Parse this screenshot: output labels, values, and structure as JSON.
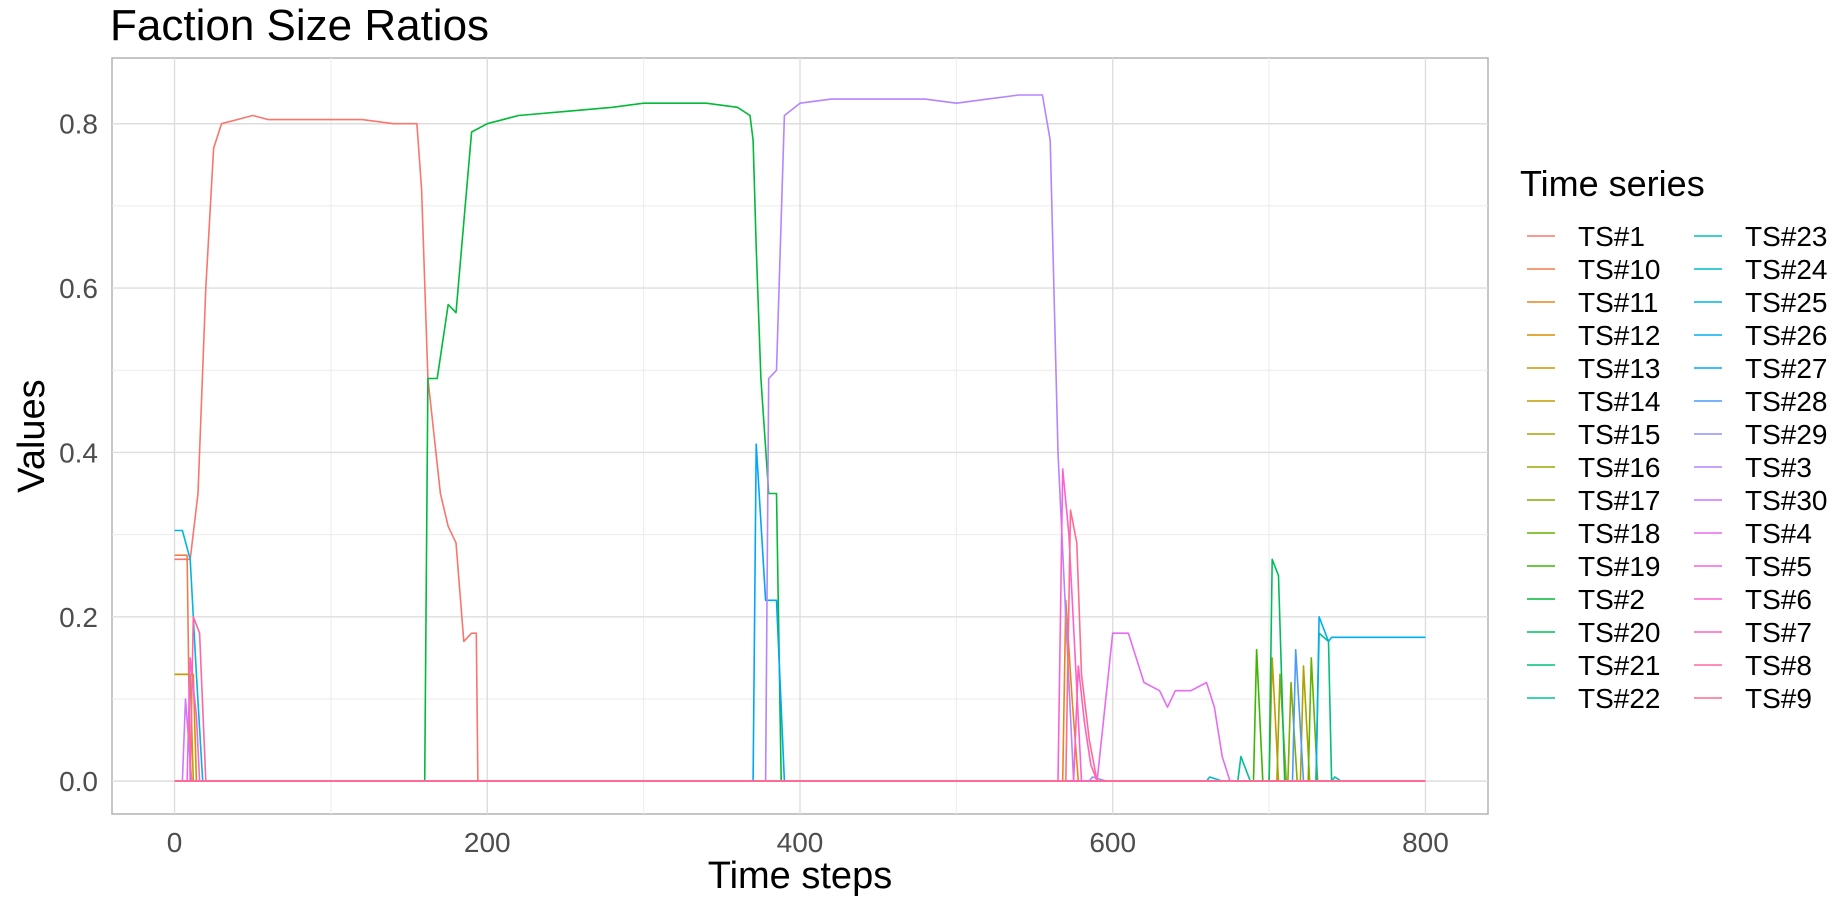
{
  "chart_data": {
    "type": "line",
    "title": "Faction Size Ratios",
    "xlabel": "Time steps",
    "ylabel": "Values",
    "xlim": [
      -40,
      840
    ],
    "ylim": [
      -0.04,
      0.88
    ],
    "x_ticks": [
      0,
      200,
      400,
      600,
      800
    ],
    "y_ticks": [
      0.0,
      0.2,
      0.4,
      0.6,
      0.8
    ],
    "x_tick_labels": [
      "0",
      "200",
      "400",
      "600",
      "800"
    ],
    "y_tick_labels": [
      "0.0",
      "0.2",
      "0.4",
      "0.6",
      "0.8"
    ],
    "grid": true,
    "legend": {
      "title": "Time series",
      "position": "right",
      "columns": 2
    },
    "series": [
      {
        "name": "TS#1",
        "color": "#F8766D",
        "points": [
          [
            0,
            0.27
          ],
          [
            10,
            0.27
          ],
          [
            15,
            0.35
          ],
          [
            20,
            0.6
          ],
          [
            25,
            0.77
          ],
          [
            30,
            0.8
          ],
          [
            40,
            0.805
          ],
          [
            50,
            0.81
          ],
          [
            60,
            0.805
          ],
          [
            80,
            0.805
          ],
          [
            100,
            0.805
          ],
          [
            120,
            0.805
          ],
          [
            140,
            0.8
          ],
          [
            155,
            0.8
          ],
          [
            158,
            0.72
          ],
          [
            162,
            0.49
          ],
          [
            170,
            0.35
          ],
          [
            175,
            0.31
          ],
          [
            180,
            0.29
          ],
          [
            185,
            0.17
          ],
          [
            190,
            0.18
          ],
          [
            193,
            0.18
          ],
          [
            194,
            0.0
          ],
          [
            800,
            0.0
          ]
        ]
      },
      {
        "name": "TS#10",
        "color": "#F07E4B",
        "points": [
          [
            0,
            0.275
          ],
          [
            8,
            0.275
          ],
          [
            10,
            0.0
          ],
          [
            800,
            0.0
          ]
        ]
      },
      {
        "name": "TS#11",
        "color": "#E7861B",
        "points": [
          [
            0,
            0.0
          ],
          [
            568,
            0.0
          ],
          [
            570,
            0.22
          ],
          [
            574,
            0.1
          ],
          [
            578,
            0.0
          ],
          [
            800,
            0.0
          ]
        ]
      },
      {
        "name": "TS#12",
        "color": "#DB8E00",
        "points": [
          [
            0,
            0.13
          ],
          [
            12,
            0.13
          ],
          [
            14,
            0.0
          ],
          [
            800,
            0.0
          ]
        ]
      },
      {
        "name": "TS#13",
        "color": "#CE9600",
        "points": [
          [
            0,
            0.0
          ],
          [
            700,
            0.0
          ],
          [
            702,
            0.15
          ],
          [
            706,
            0.0
          ],
          [
            800,
            0.0
          ]
        ]
      },
      {
        "name": "TS#14",
        "color": "#BF9C00",
        "points": [
          [
            0,
            0.13
          ],
          [
            10,
            0.13
          ],
          [
            12,
            0.0
          ],
          [
            800,
            0.0
          ]
        ]
      },
      {
        "name": "TS#15",
        "color": "#ADA200",
        "points": [
          [
            0,
            0.0
          ],
          [
            720,
            0.0
          ],
          [
            722,
            0.14
          ],
          [
            726,
            0.0
          ],
          [
            800,
            0.0
          ]
        ]
      },
      {
        "name": "TS#16",
        "color": "#99A800",
        "points": [
          [
            0,
            0.0
          ],
          [
            705,
            0.0
          ],
          [
            707,
            0.13
          ],
          [
            711,
            0.0
          ],
          [
            800,
            0.0
          ]
        ]
      },
      {
        "name": "TS#17",
        "color": "#81AD00",
        "points": [
          [
            0,
            0.0
          ],
          [
            712,
            0.0
          ],
          [
            714,
            0.12
          ],
          [
            718,
            0.0
          ],
          [
            800,
            0.0
          ]
        ]
      },
      {
        "name": "TS#18",
        "color": "#64B200",
        "points": [
          [
            0,
            0.0
          ],
          [
            725,
            0.0
          ],
          [
            727,
            0.15
          ],
          [
            731,
            0.0
          ],
          [
            800,
            0.0
          ]
        ]
      },
      {
        "name": "TS#19",
        "color": "#3CB600",
        "points": [
          [
            0,
            0.0
          ],
          [
            690,
            0.0
          ],
          [
            692,
            0.16
          ],
          [
            696,
            0.0
          ],
          [
            800,
            0.0
          ]
        ]
      },
      {
        "name": "TS#2",
        "color": "#00BA38",
        "points": [
          [
            0,
            0.0
          ],
          [
            160,
            0.0
          ],
          [
            162,
            0.49
          ],
          [
            168,
            0.49
          ],
          [
            175,
            0.58
          ],
          [
            180,
            0.57
          ],
          [
            185,
            0.68
          ],
          [
            190,
            0.79
          ],
          [
            200,
            0.8
          ],
          [
            220,
            0.81
          ],
          [
            250,
            0.815
          ],
          [
            280,
            0.82
          ],
          [
            300,
            0.825
          ],
          [
            320,
            0.825
          ],
          [
            340,
            0.825
          ],
          [
            360,
            0.82
          ],
          [
            368,
            0.81
          ],
          [
            370,
            0.78
          ],
          [
            372,
            0.65
          ],
          [
            375,
            0.49
          ],
          [
            380,
            0.35
          ],
          [
            385,
            0.35
          ],
          [
            388,
            0.0
          ],
          [
            800,
            0.0
          ]
        ]
      },
      {
        "name": "TS#20",
        "color": "#00BD5C",
        "points": [
          [
            0,
            0.0
          ],
          [
            700,
            0.0
          ],
          [
            702,
            0.27
          ],
          [
            706,
            0.25
          ],
          [
            710,
            0.0
          ],
          [
            800,
            0.0
          ]
        ]
      },
      {
        "name": "TS#21",
        "color": "#00C07B",
        "points": [
          [
            0,
            0.0
          ],
          [
            730,
            0.0
          ],
          [
            732,
            0.18
          ],
          [
            738,
            0.17
          ],
          [
            740,
            0.0
          ],
          [
            800,
            0.0
          ]
        ]
      },
      {
        "name": "TS#22",
        "color": "#00C098",
        "points": [
          [
            0,
            0.0
          ],
          [
            680,
            0.0
          ],
          [
            682,
            0.03
          ],
          [
            688,
            0.0
          ],
          [
            800,
            0.0
          ]
        ]
      },
      {
        "name": "TS#23",
        "color": "#00BFB2",
        "points": [
          [
            0,
            0.0
          ],
          [
            740,
            0.0
          ],
          [
            742,
            0.005
          ],
          [
            746,
            0.0
          ],
          [
            800,
            0.0
          ]
        ]
      },
      {
        "name": "TS#24",
        "color": "#00BCCA",
        "points": [
          [
            0,
            0.0
          ],
          [
            660,
            0.0
          ],
          [
            662,
            0.005
          ],
          [
            670,
            0.0
          ],
          [
            800,
            0.0
          ]
        ]
      },
      {
        "name": "TS#25",
        "color": "#00B6E0",
        "points": [
          [
            0,
            0.305
          ],
          [
            5,
            0.305
          ],
          [
            10,
            0.27
          ],
          [
            14,
            0.13
          ],
          [
            18,
            0.0
          ],
          [
            800,
            0.0
          ]
        ]
      },
      {
        "name": "TS#26",
        "color": "#00AFF3",
        "points": [
          [
            0,
            0.0
          ],
          [
            730,
            0.0
          ],
          [
            732,
            0.2
          ],
          [
            738,
            0.17
          ],
          [
            740,
            0.175
          ],
          [
            800,
            0.175
          ]
        ]
      },
      {
        "name": "TS#27",
        "color": "#00A5FF",
        "points": [
          [
            0,
            0.0
          ],
          [
            370,
            0.0
          ],
          [
            372,
            0.41
          ],
          [
            378,
            0.22
          ],
          [
            385,
            0.22
          ],
          [
            390,
            0.0
          ],
          [
            800,
            0.0
          ]
        ]
      },
      {
        "name": "TS#28",
        "color": "#4D9AFF",
        "points": [
          [
            0,
            0.0
          ],
          [
            715,
            0.0
          ],
          [
            717,
            0.16
          ],
          [
            722,
            0.0
          ],
          [
            800,
            0.0
          ]
        ]
      },
      {
        "name": "TS#29",
        "color": "#8F91FF",
        "points": [
          [
            0,
            0.0
          ],
          [
            585,
            0.0
          ],
          [
            587,
            0.005
          ],
          [
            596,
            0.0
          ],
          [
            800,
            0.0
          ]
        ]
      },
      {
        "name": "TS#3",
        "color": "#B584FF",
        "points": [
          [
            0,
            0.0
          ],
          [
            378,
            0.0
          ],
          [
            380,
            0.49
          ],
          [
            385,
            0.5
          ],
          [
            390,
            0.81
          ],
          [
            400,
            0.825
          ],
          [
            420,
            0.83
          ],
          [
            440,
            0.83
          ],
          [
            460,
            0.83
          ],
          [
            480,
            0.83
          ],
          [
            500,
            0.825
          ],
          [
            520,
            0.83
          ],
          [
            540,
            0.835
          ],
          [
            555,
            0.835
          ],
          [
            560,
            0.78
          ],
          [
            565,
            0.4
          ],
          [
            570,
            0.2
          ],
          [
            575,
            0.0
          ],
          [
            800,
            0.0
          ]
        ]
      },
      {
        "name": "TS#30",
        "color": "#D077FF",
        "points": [
          [
            0,
            0.0
          ],
          [
            5,
            0.0
          ],
          [
            7,
            0.1
          ],
          [
            11,
            0.0
          ],
          [
            800,
            0.0
          ]
        ]
      },
      {
        "name": "TS#4",
        "color": "#E76BF3",
        "points": [
          [
            0,
            0.0
          ],
          [
            590,
            0.0
          ],
          [
            600,
            0.18
          ],
          [
            610,
            0.18
          ],
          [
            615,
            0.15
          ],
          [
            620,
            0.12
          ],
          [
            630,
            0.11
          ],
          [
            635,
            0.09
          ],
          [
            640,
            0.11
          ],
          [
            650,
            0.11
          ],
          [
            660,
            0.12
          ],
          [
            665,
            0.09
          ],
          [
            670,
            0.03
          ],
          [
            675,
            0.0
          ],
          [
            800,
            0.0
          ]
        ]
      },
      {
        "name": "TS#5",
        "color": "#F564E3",
        "points": [
          [
            0,
            0.0
          ],
          [
            8,
            0.0
          ],
          [
            10,
            0.15
          ],
          [
            14,
            0.08
          ],
          [
            16,
            0.0
          ],
          [
            800,
            0.0
          ]
        ]
      },
      {
        "name": "TS#6",
        "color": "#FD61D1",
        "points": [
          [
            0,
            0.0
          ],
          [
            565,
            0.0
          ],
          [
            568,
            0.38
          ],
          [
            572,
            0.3
          ],
          [
            576,
            0.15
          ],
          [
            580,
            0.0
          ],
          [
            800,
            0.0
          ]
        ]
      },
      {
        "name": "TS#7",
        "color": "#FF62BC",
        "points": [
          [
            0,
            0.0
          ],
          [
            575,
            0.0
          ],
          [
            578,
            0.14
          ],
          [
            582,
            0.07
          ],
          [
            586,
            0.02
          ],
          [
            590,
            0.0
          ],
          [
            800,
            0.0
          ]
        ]
      },
      {
        "name": "TS#8",
        "color": "#FF67A4",
        "points": [
          [
            0,
            0.0
          ],
          [
            10,
            0.0
          ],
          [
            12,
            0.2
          ],
          [
            16,
            0.18
          ],
          [
            20,
            0.0
          ],
          [
            800,
            0.0
          ]
        ]
      },
      {
        "name": "TS#9",
        "color": "#FF6C90",
        "points": [
          [
            0,
            0.0
          ],
          [
            570,
            0.0
          ],
          [
            573,
            0.33
          ],
          [
            577,
            0.29
          ],
          [
            580,
            0.13
          ],
          [
            585,
            0.05
          ],
          [
            590,
            0.0
          ],
          [
            800,
            0.0
          ]
        ]
      }
    ]
  }
}
